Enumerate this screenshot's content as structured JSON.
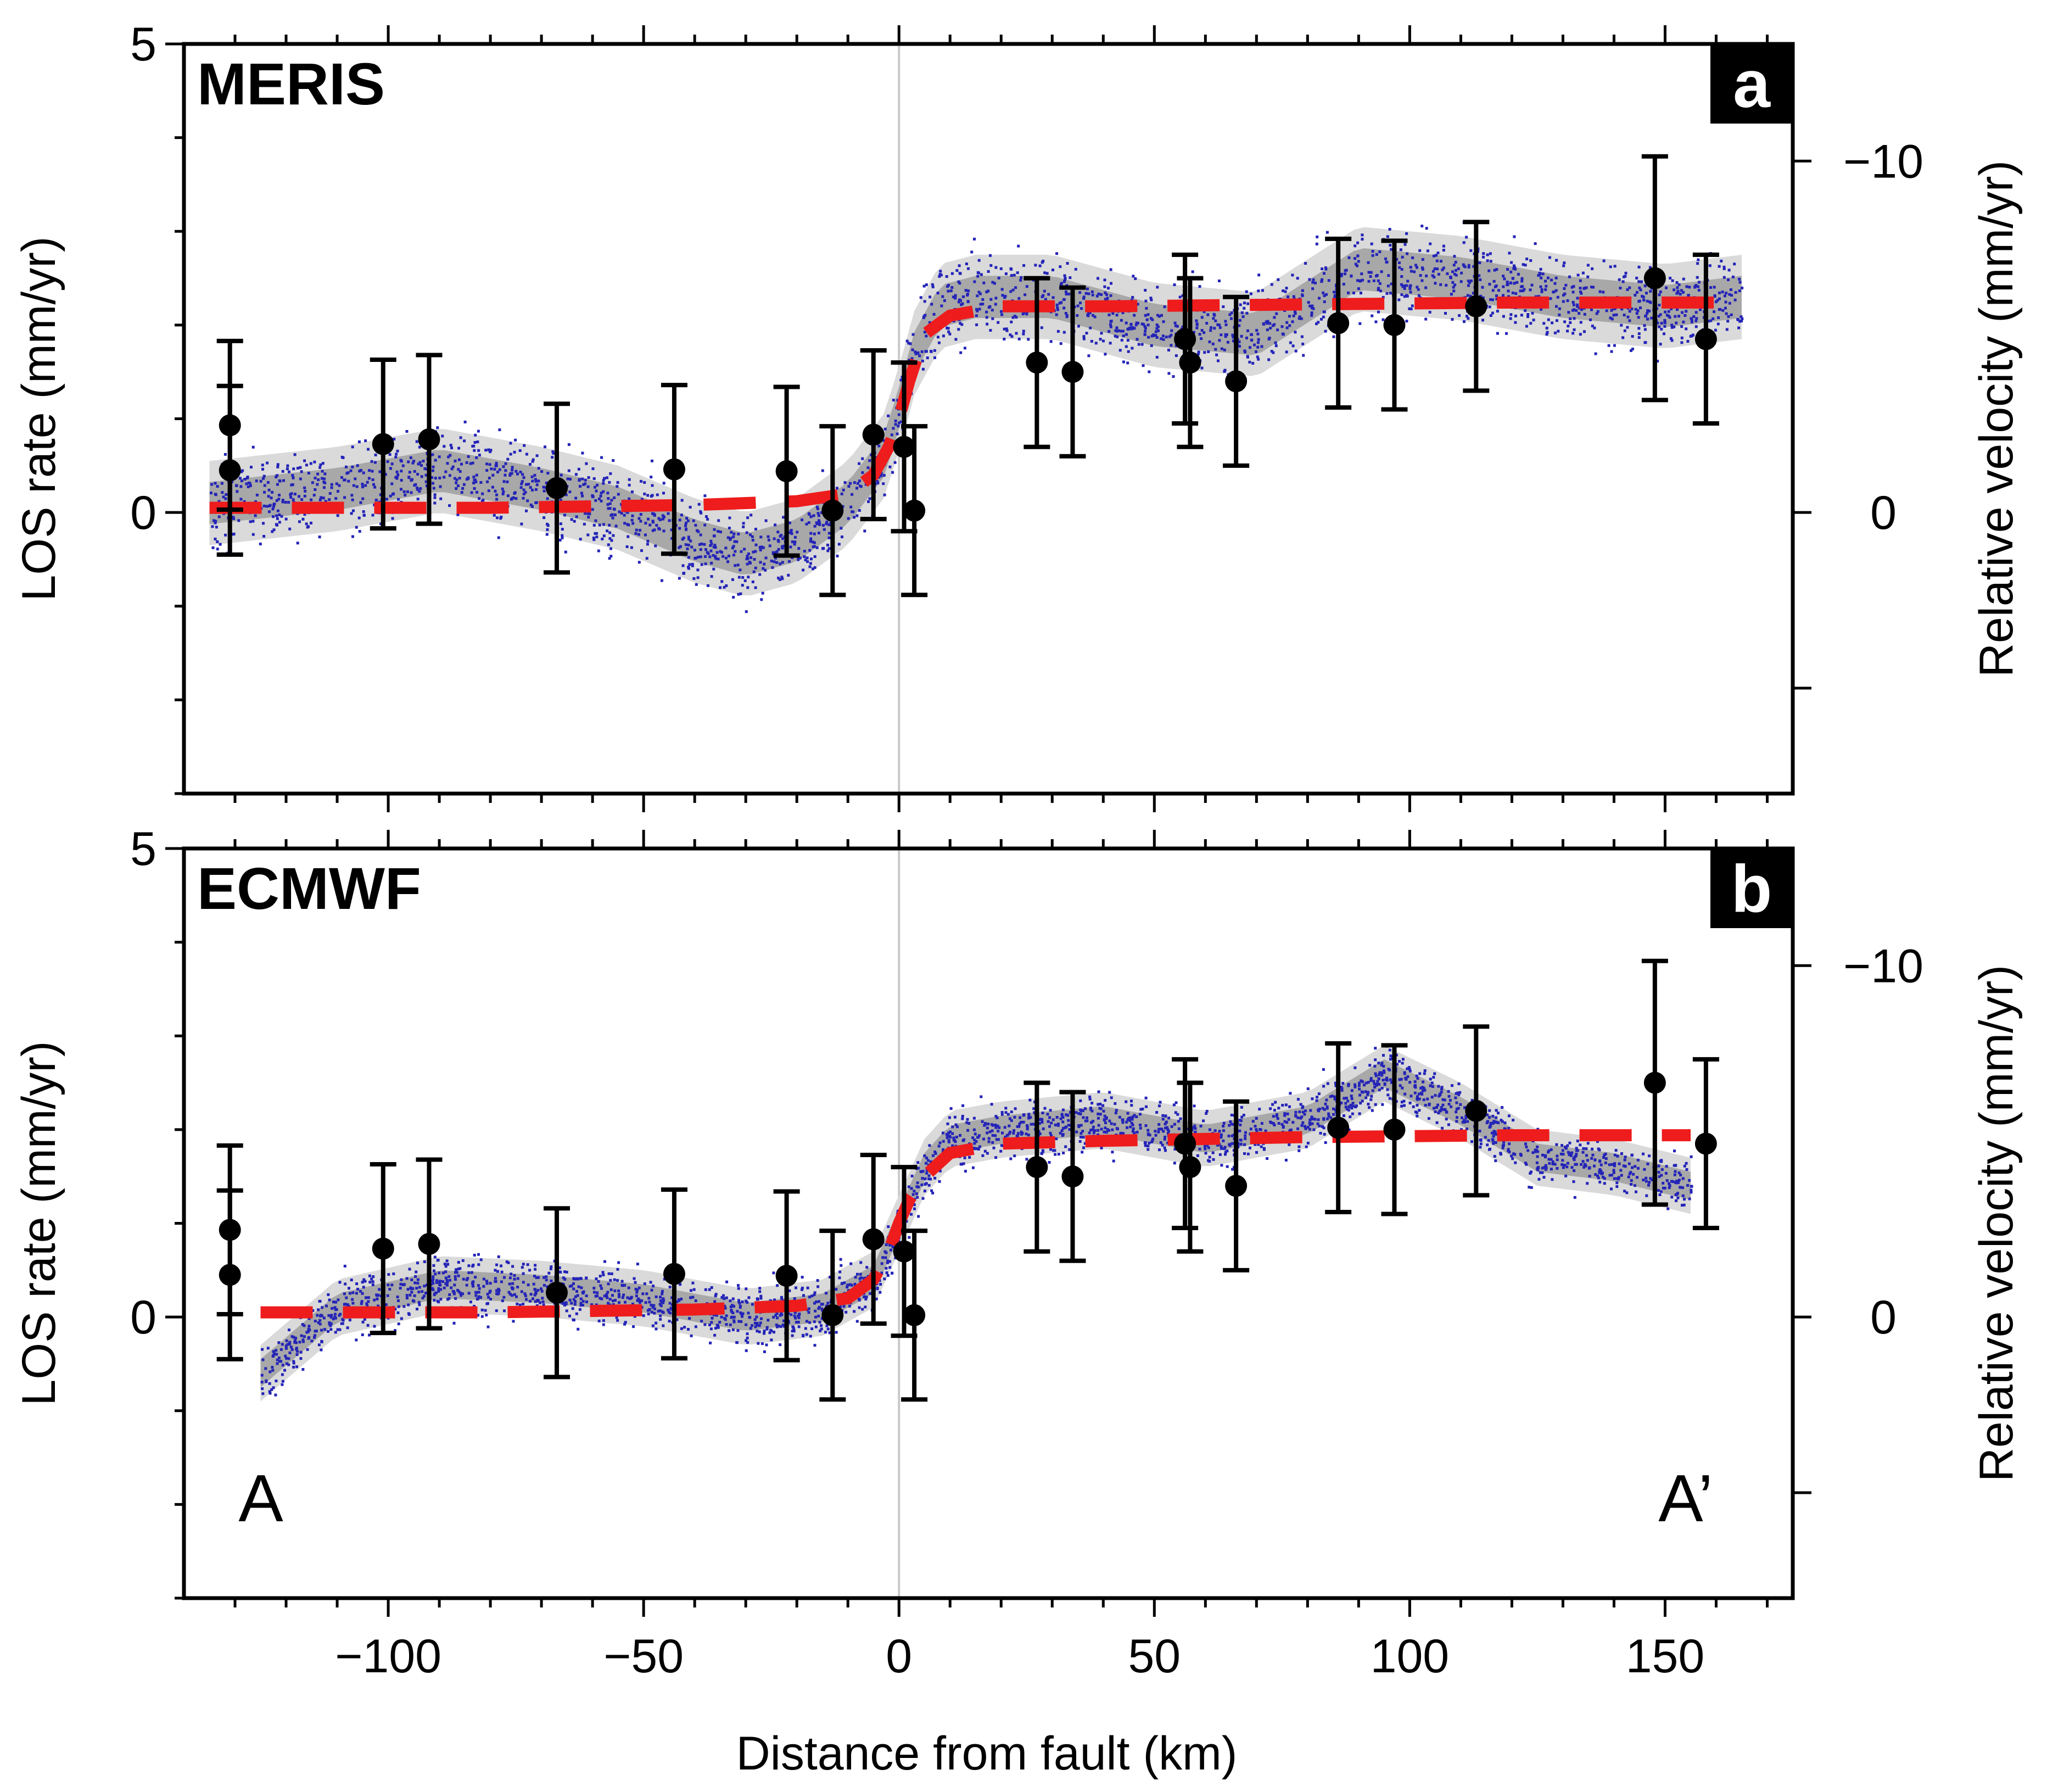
{
  "chart_data": [
    {
      "type": "scatter",
      "panel_label": "a",
      "title": "MERIS",
      "xlabel": "Distance from fault (km)",
      "ylabel": "LOS rate (mm/yr)",
      "ylabel_right": "Relative velocity (mm/yr)",
      "xlim": [
        -140,
        175
      ],
      "ylim": [
        -3,
        5
      ],
      "y_ticks_left": [
        0,
        5
      ],
      "y_ticks_right": [
        {
          "los": 3.75,
          "label": "−10"
        },
        {
          "los": 0,
          "label": "0"
        },
        {
          "los": -1.875,
          "label": ""
        }
      ],
      "fault_x": 0,
      "series": [
        {
          "name": "model fit",
          "style": "red-dashed",
          "x": [
            -135,
            -80,
            -40,
            -20,
            -10,
            -5,
            -2,
            0,
            2,
            5,
            10,
            20,
            40,
            80,
            120,
            165
          ],
          "y": [
            0.05,
            0.05,
            0.08,
            0.12,
            0.2,
            0.4,
            0.7,
            1.0,
            1.4,
            1.9,
            2.1,
            2.2,
            2.2,
            2.22,
            2.24,
            2.24
          ]
        },
        {
          "name": "binned data",
          "style": "black-points-errorbars",
          "points": [
            {
              "x": -131,
              "y": 0.93,
              "err": 0.9
            },
            {
              "x": -131,
              "y": 0.45,
              "err": 0.9
            },
            {
              "x": -101,
              "y": 0.73,
              "err": 0.9
            },
            {
              "x": -92,
              "y": 0.78,
              "err": 0.9
            },
            {
              "x": -67,
              "y": 0.26,
              "err": 0.9
            },
            {
              "x": -44,
              "y": 0.46,
              "err": 0.9
            },
            {
              "x": -22,
              "y": 0.44,
              "err": 0.9
            },
            {
              "x": -13,
              "y": 0.02,
              "err": 0.9
            },
            {
              "x": -5,
              "y": 0.83,
              "err": 0.9
            },
            {
              "x": 1,
              "y": 0.7,
              "err": 0.9
            },
            {
              "x": 3,
              "y": 0.02,
              "err": 0.9
            },
            {
              "x": 27,
              "y": 1.6,
              "err": 0.9
            },
            {
              "x": 34,
              "y": 1.5,
              "err": 0.9
            },
            {
              "x": 56,
              "y": 1.85,
              "err": 0.9
            },
            {
              "x": 57,
              "y": 1.6,
              "err": 0.9
            },
            {
              "x": 66,
              "y": 1.4,
              "err": 0.9
            },
            {
              "x": 86,
              "y": 2.02,
              "err": 0.9
            },
            {
              "x": 97,
              "y": 2.0,
              "err": 0.9
            },
            {
              "x": 113,
              "y": 2.2,
              "err": 0.9
            },
            {
              "x": 148,
              "y": 2.5,
              "err": 1.3
            },
            {
              "x": 158,
              "y": 1.85,
              "err": 0.9
            }
          ]
        },
        {
          "name": "InSAR samples",
          "style": "blue-dots",
          "mean_x": [
            -135,
            -110,
            -90,
            -70,
            -55,
            -40,
            -30,
            -20,
            -10,
            -3,
            0,
            3,
            8,
            15,
            30,
            50,
            70,
            90,
            110,
            130,
            150,
            165
          ],
          "mean_y": [
            0.1,
            0.25,
            0.45,
            0.25,
            0.05,
            -0.3,
            -0.45,
            -0.3,
            0.1,
            0.6,
            1.1,
            1.7,
            2.2,
            2.3,
            2.3,
            2.0,
            1.9,
            2.6,
            2.5,
            2.3,
            2.2,
            2.3
          ],
          "spread": 0.45
        }
      ]
    },
    {
      "type": "scatter",
      "panel_label": "b",
      "title": "ECMWF",
      "xlabel": "Distance from fault (km)",
      "ylabel": "LOS rate (mm/yr)",
      "ylabel_right": "Relative velocity (mm/yr)",
      "xlim": [
        -140,
        175
      ],
      "ylim": [
        -3,
        5
      ],
      "y_ticks_left": [
        0,
        5
      ],
      "y_ticks_right": [
        {
          "los": 3.75,
          "label": "−10"
        },
        {
          "los": 0,
          "label": "0"
        },
        {
          "los": -1.875,
          "label": ""
        }
      ],
      "x_ticks": [
        -100,
        -50,
        0,
        50,
        100,
        150
      ],
      "x_tick_labels": [
        "−100",
        "−50",
        "0",
        "50",
        "100",
        "150"
      ],
      "fault_x": 0,
      "corner_left": "A",
      "corner_right": "A’",
      "series": [
        {
          "name": "model fit",
          "style": "red-dashed",
          "x": [
            -125,
            -80,
            -40,
            -20,
            -10,
            -5,
            -2,
            0,
            2,
            5,
            10,
            20,
            40,
            80,
            120,
            155
          ],
          "y": [
            0.05,
            0.05,
            0.08,
            0.12,
            0.2,
            0.4,
            0.7,
            1.0,
            1.25,
            1.5,
            1.75,
            1.85,
            1.88,
            1.92,
            1.94,
            1.94
          ]
        },
        {
          "name": "binned data",
          "style": "black-points-errorbars",
          "points": [
            {
              "x": -131,
              "y": 0.93,
              "err": 0.9
            },
            {
              "x": -131,
              "y": 0.45,
              "err": 0.9
            },
            {
              "x": -101,
              "y": 0.73,
              "err": 0.9
            },
            {
              "x": -92,
              "y": 0.78,
              "err": 0.9
            },
            {
              "x": -67,
              "y": 0.26,
              "err": 0.9
            },
            {
              "x": -44,
              "y": 0.46,
              "err": 0.9
            },
            {
              "x": -22,
              "y": 0.44,
              "err": 0.9
            },
            {
              "x": -13,
              "y": 0.02,
              "err": 0.9
            },
            {
              "x": -5,
              "y": 0.83,
              "err": 0.9
            },
            {
              "x": 1,
              "y": 0.7,
              "err": 0.9
            },
            {
              "x": 3,
              "y": 0.02,
              "err": 0.9
            },
            {
              "x": 27,
              "y": 1.6,
              "err": 0.9
            },
            {
              "x": 34,
              "y": 1.5,
              "err": 0.9
            },
            {
              "x": 56,
              "y": 1.85,
              "err": 0.9
            },
            {
              "x": 57,
              "y": 1.6,
              "err": 0.9
            },
            {
              "x": 66,
              "y": 1.4,
              "err": 0.9
            },
            {
              "x": 86,
              "y": 2.02,
              "err": 0.9
            },
            {
              "x": 97,
              "y": 2.0,
              "err": 0.9
            },
            {
              "x": 113,
              "y": 2.2,
              "err": 0.9
            },
            {
              "x": 148,
              "y": 2.5,
              "err": 1.3
            },
            {
              "x": 158,
              "y": 1.85,
              "err": 0.9
            }
          ]
        },
        {
          "name": "InSAR samples",
          "style": "blue-dots",
          "mean_x": [
            -125,
            -110,
            -90,
            -70,
            -50,
            -30,
            -15,
            -5,
            0,
            5,
            10,
            20,
            40,
            60,
            80,
            95,
            110,
            125,
            140,
            155
          ],
          "mean_y": [
            -0.6,
            0.1,
            0.35,
            0.3,
            0.2,
            0.0,
            0.1,
            0.4,
            1.0,
            1.6,
            1.9,
            2.0,
            2.1,
            1.9,
            2.1,
            2.6,
            2.2,
            1.7,
            1.6,
            1.4
          ],
          "spread": 0.3
        }
      ]
    }
  ]
}
